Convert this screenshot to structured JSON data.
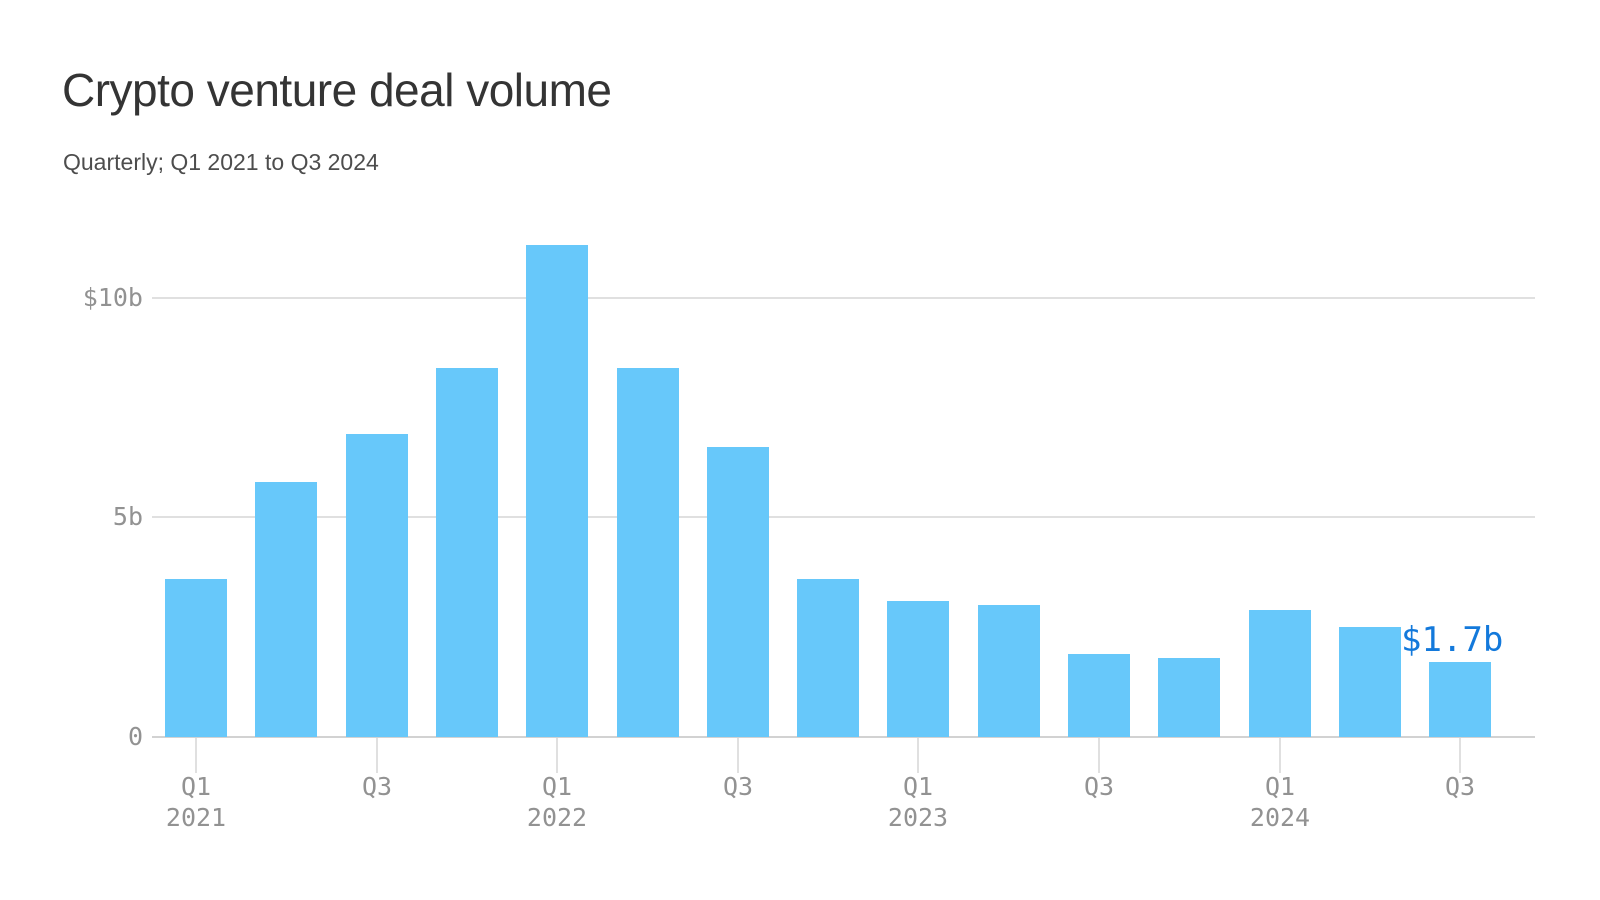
{
  "header": {
    "title": "Crypto venture deal volume",
    "subtitle": "Quarterly; Q1 2021 to Q3 2024"
  },
  "chart_data": {
    "type": "bar",
    "title": "Crypto venture deal volume",
    "subtitle": "Quarterly; Q1 2021 to Q3 2024",
    "unit": "billions of USD",
    "categories": [
      "Q1 2021",
      "Q2 2021",
      "Q3 2021",
      "Q4 2021",
      "Q1 2022",
      "Q2 2022",
      "Q3 2022",
      "Q4 2022",
      "Q1 2023",
      "Q2 2023",
      "Q3 2023",
      "Q4 2023",
      "Q1 2024",
      "Q2 2024",
      "Q3 2024"
    ],
    "values": [
      3.6,
      5.8,
      6.9,
      8.4,
      11.2,
      8.4,
      6.6,
      3.6,
      3.1,
      3.0,
      1.9,
      1.8,
      2.9,
      2.5,
      1.7
    ],
    "ylim": [
      0,
      11.5
    ],
    "grid": true,
    "legend": "none",
    "y_ticks": [
      {
        "value": 0,
        "label": "0"
      },
      {
        "value": 5,
        "label": "5b"
      },
      {
        "value": 10,
        "label": "$10b"
      }
    ],
    "x_ticks": [
      {
        "index": 0,
        "label": "Q1",
        "year": "2021"
      },
      {
        "index": 2,
        "label": "Q3",
        "year": ""
      },
      {
        "index": 4,
        "label": "Q1",
        "year": "2022"
      },
      {
        "index": 6,
        "label": "Q3",
        "year": ""
      },
      {
        "index": 8,
        "label": "Q1",
        "year": "2023"
      },
      {
        "index": 10,
        "label": "Q3",
        "year": ""
      },
      {
        "index": 12,
        "label": "Q1",
        "year": "2024"
      },
      {
        "index": 14,
        "label": "Q3",
        "year": ""
      }
    ],
    "annotation": {
      "text": "$1.7b",
      "bar_index": 14
    },
    "colors": {
      "background": "#ffffff",
      "bar": "#67c8fa",
      "annotation": "#1379db",
      "grid": "#e0e0e0",
      "axis": "#d2d2d2",
      "tick_text": "#929292",
      "title_text": "#343434",
      "subtitle_text": "#4d4d4d"
    }
  }
}
